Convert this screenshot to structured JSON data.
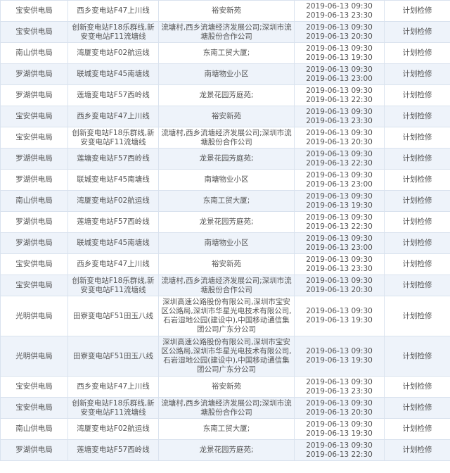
{
  "table": {
    "rows": [
      {
        "bureau": "宝安供电局",
        "line": "西乡变电站F47上川线",
        "area": "裕安新苑",
        "start": "2019-06-13 09:30",
        "end": "2019-06-13 23:30",
        "type": "计划检修"
      },
      {
        "bureau": "宝安供电局",
        "line": "创新变电站F18乐群线,新安变电站F11流塘线",
        "area": "流塘村,西乡流塘经济发展公司;深圳市流塘股份合作公司",
        "start": "2019-06-13 09:30",
        "end": "2019-06-13 20:30",
        "type": "计划检修"
      },
      {
        "bureau": "南山供电局",
        "line": "湾厦变电站F02航运线",
        "area": "东南工贸大厦;",
        "start": "2019-06-13 09:30",
        "end": "2019-06-13 19:30",
        "type": "计划检修"
      },
      {
        "bureau": "罗湖供电局",
        "line": "联城变电站F45南塘线",
        "area": "南塘物业小区",
        "start": "2019-06-13 09:30",
        "end": "2019-06-13 23:00",
        "type": "计划检修"
      },
      {
        "bureau": "罗湖供电局",
        "line": "莲塘变电站F57西岭线",
        "area": "龙景花园芳庭苑;",
        "start": "2019-06-13 09:30",
        "end": "2019-06-13 22:30",
        "type": "计划检修"
      },
      {
        "bureau": "宝安供电局",
        "line": "西乡变电站F47上川线",
        "area": "裕安新苑",
        "start": "2019-06-13 09:30",
        "end": "2019-06-13 23:30",
        "type": "计划检修"
      },
      {
        "bureau": "宝安供电局",
        "line": "创新变电站F18乐群线,新安变电站F11流塘线",
        "area": "流塘村,西乡流塘经济发展公司;深圳市流塘股份合作公司",
        "start": "2019-06-13 09:30",
        "end": "2019-06-13 20:30",
        "type": "计划检修"
      },
      {
        "bureau": "罗湖供电局",
        "line": "莲塘变电站F57西岭线",
        "area": "龙景花园芳庭苑;",
        "start": "2019-06-13 09:30",
        "end": "2019-06-13 22:30",
        "type": "计划检修"
      },
      {
        "bureau": "罗湖供电局",
        "line": "联城变电站F45南塘线",
        "area": "南塘物业小区",
        "start": "2019-06-13 09:30",
        "end": "2019-06-13 23:00",
        "type": "计划检修"
      },
      {
        "bureau": "南山供电局",
        "line": "湾厦变电站F02航运线",
        "area": "东南工贸大厦;",
        "start": "2019-06-13 09:30",
        "end": "2019-06-13 19:30",
        "type": "计划检修"
      },
      {
        "bureau": "罗湖供电局",
        "line": "莲塘变电站F57西岭线",
        "area": "龙景花园芳庭苑;",
        "start": "2019-06-13 09:30",
        "end": "2019-06-13 22:30",
        "type": "计划检修"
      },
      {
        "bureau": "罗湖供电局",
        "line": "联城变电站F45南塘线",
        "area": "南塘物业小区",
        "start": "2019-06-13 09:30",
        "end": "2019-06-13 23:00",
        "type": "计划检修"
      },
      {
        "bureau": "宝安供电局",
        "line": "西乡变电站F47上川线",
        "area": "裕安新苑",
        "start": "2019-06-13 09:30",
        "end": "2019-06-13 23:30",
        "type": "计划检修"
      },
      {
        "bureau": "宝安供电局",
        "line": "创新变电站F18乐群线,新安变电站F11流塘线",
        "area": "流塘村,西乡流塘经济发展公司;深圳市流塘股份合作公司",
        "start": "2019-06-13 09:30",
        "end": "2019-06-13 20:30",
        "type": "计划检修"
      },
      {
        "bureau": "光明供电局",
        "line": "田寮变电站F51田玉八线",
        "area": "深圳高速公路股份有限公司,深圳市宝安区公路局,深圳市华星光电技术有限公司,石岩湿地公园(建设中),中国移动通信集团公司广东分公司",
        "start": "2019-06-13 09:30",
        "end": "2019-06-13 19:30",
        "type": "计划检修",
        "tall": true
      },
      {
        "bureau": "光明供电局",
        "line": "田寮变电站F51田玉八线",
        "area": "深圳高速公路股份有限公司,深圳市宝安区公路局,深圳市华星光电技术有限公司,石岩湿地公园(建设中),中国移动通信集团公司广东分公司",
        "start": "2019-06-13 09:30",
        "end": "2019-06-13 19:30",
        "type": "计划检修",
        "tall": true
      },
      {
        "bureau": "宝安供电局",
        "line": "西乡变电站F47上川线",
        "area": "裕安新苑",
        "start": "2019-06-13 09:30",
        "end": "2019-06-13 23:30",
        "type": "计划检修"
      },
      {
        "bureau": "宝安供电局",
        "line": "创新变电站F18乐群线,新安变电站F11流塘线",
        "area": "流塘村,西乡流塘经济发展公司;深圳市流塘股份合作公司",
        "start": "2019-06-13 09:30",
        "end": "2019-06-13 20:30",
        "type": "计划检修"
      },
      {
        "bureau": "南山供电局",
        "line": "湾厦变电站F02航运线",
        "area": "东南工贸大厦;",
        "start": "2019-06-13 09:30",
        "end": "2019-06-13 19:30",
        "type": "计划检修"
      },
      {
        "bureau": "罗湖供电局",
        "line": "莲塘变电站F57西岭线",
        "area": "龙景花园芳庭苑;",
        "start": "2019-06-13 09:30",
        "end": "2019-06-13 22:30",
        "type": "计划检修"
      }
    ]
  },
  "colors": {
    "alt_row": "#eef3fa",
    "border": "#d9e2ee",
    "text": "#555555"
  }
}
